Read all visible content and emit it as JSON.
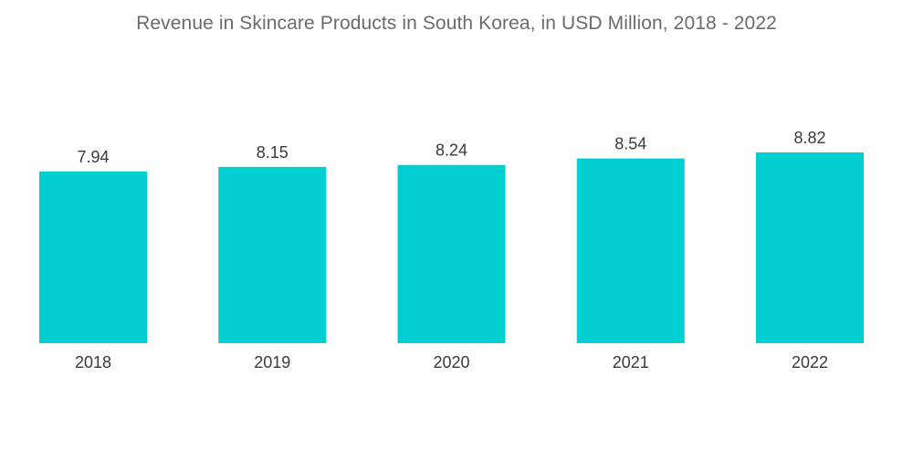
{
  "chart_data": {
    "type": "bar",
    "title": "Revenue in Skincare Products in South Korea, in USD Million, 2018 - 2022",
    "categories": [
      "2018",
      "2019",
      "2020",
      "2021",
      "2022"
    ],
    "values": [
      7.94,
      8.15,
      8.24,
      8.54,
      8.82
    ],
    "value_labels": [
      "7.94",
      "8.15",
      "8.24",
      "8.54",
      "8.82"
    ],
    "xlabel": "",
    "ylabel": "",
    "ylim": [
      0,
      8.82
    ],
    "grid": false,
    "legend": "none",
    "bar_color": "#00CED1",
    "text_color": "#3a3a3a",
    "title_color": "#6b6b6b"
  }
}
